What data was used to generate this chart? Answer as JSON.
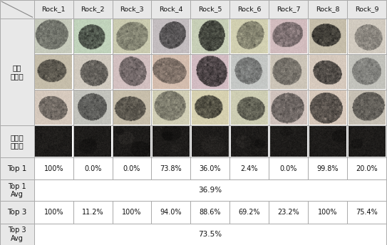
{
  "col_headers": [
    "Rock_1",
    "Rock_2",
    "Rock_3",
    "Rock_4",
    "Rock_5",
    "Rock_6",
    "Rock_7",
    "Rock_8",
    "Rock_9"
  ],
  "top1_values": [
    "100%",
    "0.0%",
    "0.0%",
    "73.8%",
    "36.0%",
    "2.4%",
    "0.0%",
    "99.8%",
    "20.0%"
  ],
  "top1_avg": "36.9%",
  "top3_values": [
    "100%",
    "11.2%",
    "100%",
    "94.0%",
    "88.6%",
    "69.2%",
    "23.2%",
    "100%",
    "75.4%"
  ],
  "top3_avg": "73.5%",
  "bg_color": "#ffffff",
  "cell_bg": "#e8e8e8",
  "border_color": "#aaaaaa",
  "text_color": "#222222",
  "figsize": [
    5.43,
    3.44
  ],
  "dpi": 100,
  "n_cols": 9,
  "label_훈련": "훈련\n이미지",
  "label_테스트": "테스트\n이미지",
  "label_top1": "Top 1",
  "label_top1avg": "Top 1\nAvg",
  "label_top3": "Top 3",
  "label_top3avg": "Top 3\nAvg"
}
